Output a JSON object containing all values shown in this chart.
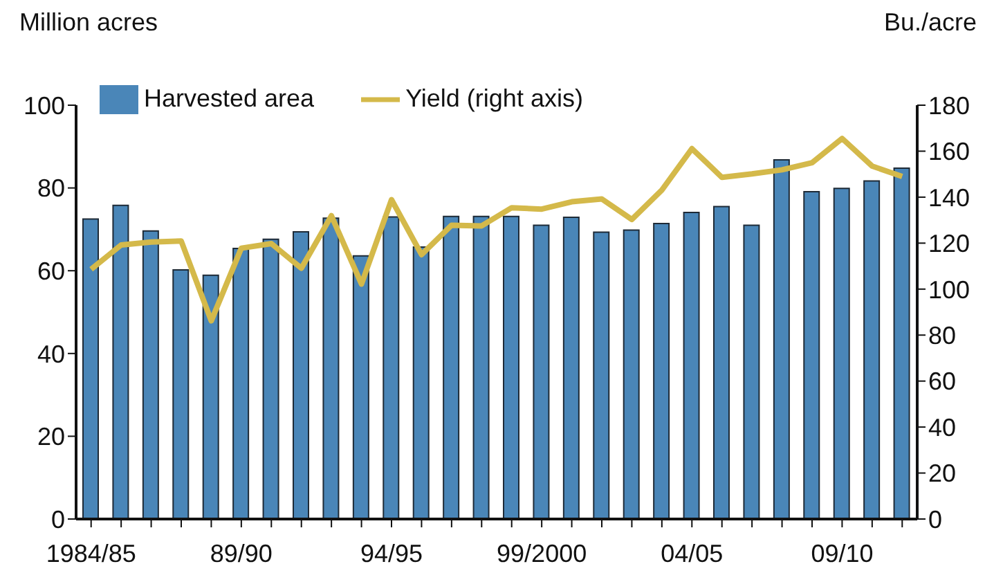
{
  "chart_data": {
    "type": "bar",
    "ylabel": "Million acres",
    "y2label": "Bu./acre",
    "legend": "top left",
    "categories": [
      "1984/85",
      null,
      null,
      null,
      null,
      "89/90",
      null,
      null,
      null,
      null,
      "94/95",
      null,
      null,
      null,
      null,
      "99/2000",
      null,
      null,
      null,
      null,
      "04/05",
      null,
      null,
      null,
      null,
      "09/10",
      null,
      null
    ],
    "series": [
      {
        "name": "Harvested area",
        "color": "#4a86b8",
        "values": [
          72.5,
          75.8,
          69.6,
          60.2,
          58.9,
          65.4,
          67.6,
          69.4,
          72.7,
          63.6,
          73.0,
          65.7,
          73.1,
          73.1,
          73.1,
          71.0,
          72.9,
          69.3,
          69.8,
          71.4,
          74.1,
          75.5,
          71.0,
          86.8,
          79.1,
          79.9,
          81.7,
          84.8
        ]
      },
      {
        "name": "Yield (right axis)",
        "type": "line",
        "axis": "y2",
        "color": "#d4b94a",
        "values": [
          108.6,
          119.2,
          120.5,
          120.9,
          86.2,
          117.8,
          119.8,
          109.1,
          131.9,
          102.2,
          138.9,
          115.0,
          127.8,
          127.5,
          135.4,
          134.8,
          138.0,
          139.2,
          130.3,
          143.1,
          161.1,
          148.6,
          150.1,
          151.9,
          155.0,
          165.5,
          153.5,
          149.0
        ]
      }
    ],
    "ylim": [
      0,
      100
    ],
    "yticks": [
      0,
      20,
      40,
      60,
      80,
      100
    ],
    "y2lim": [
      0,
      180
    ],
    "y2ticks": [
      0,
      20,
      40,
      60,
      80,
      100,
      120,
      140,
      160,
      180
    ]
  }
}
